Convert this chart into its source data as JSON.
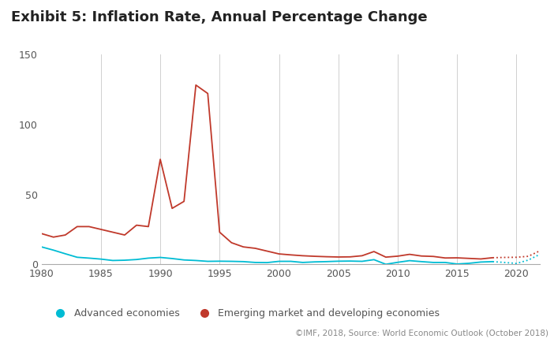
{
  "title": "Exhibit 5: Inflation Rate, Annual Percentage Change",
  "footnote": "©IMF, 2018, Source: World Economic Outlook (October 2018)",
  "years": [
    1980,
    1981,
    1982,
    1983,
    1984,
    1985,
    1986,
    1987,
    1988,
    1989,
    1990,
    1991,
    1992,
    1993,
    1994,
    1995,
    1996,
    1997,
    1998,
    1999,
    2000,
    2001,
    2002,
    2003,
    2004,
    2005,
    2006,
    2007,
    2008,
    2009,
    2010,
    2011,
    2012,
    2013,
    2014,
    2015,
    2016,
    2017,
    2018,
    2019,
    2020,
    2021,
    2022
  ],
  "advanced": [
    12.5,
    10.2,
    7.6,
    5.1,
    4.5,
    3.8,
    2.8,
    3.0,
    3.5,
    4.5,
    5.0,
    4.2,
    3.2,
    2.8,
    2.2,
    2.3,
    2.2,
    2.0,
    1.4,
    1.3,
    2.2,
    2.2,
    1.4,
    1.8,
    2.0,
    2.3,
    2.4,
    2.2,
    3.4,
    0.1,
    1.5,
    2.7,
    2.0,
    1.4,
    1.4,
    0.3,
    0.8,
    1.7,
    2.0,
    1.4,
    0.7,
    3.1,
    7.3
  ],
  "emerging": [
    22.0,
    19.5,
    21.0,
    27.0,
    27.0,
    25.0,
    23.0,
    21.0,
    28.0,
    27.0,
    75.0,
    40.0,
    45.0,
    128.0,
    122.0,
    23.0,
    15.5,
    12.5,
    11.5,
    9.5,
    7.5,
    6.8,
    6.2,
    5.8,
    5.5,
    5.3,
    5.4,
    6.2,
    9.2,
    5.2,
    5.9,
    7.2,
    6.0,
    5.7,
    4.6,
    4.7,
    4.3,
    3.9,
    4.8,
    5.0,
    5.1,
    5.8,
    9.8
  ],
  "advanced_color": "#00bcd4",
  "emerging_color": "#c0392b",
  "background_color": "#ffffff",
  "grid_color": "#d0d0d0",
  "title_fontsize": 13,
  "legend_fontsize": 9,
  "footnote_fontsize": 7.5,
  "ylim": [
    0,
    150
  ],
  "yticks": [
    0,
    50,
    100,
    150
  ],
  "xlim": [
    1980,
    2022
  ],
  "xticks": [
    1980,
    1985,
    1990,
    1995,
    2000,
    2005,
    2010,
    2015,
    2020
  ],
  "forecast_start_year": 2018,
  "legend_labels": [
    "Advanced economies",
    "Emerging market and developing economies"
  ]
}
